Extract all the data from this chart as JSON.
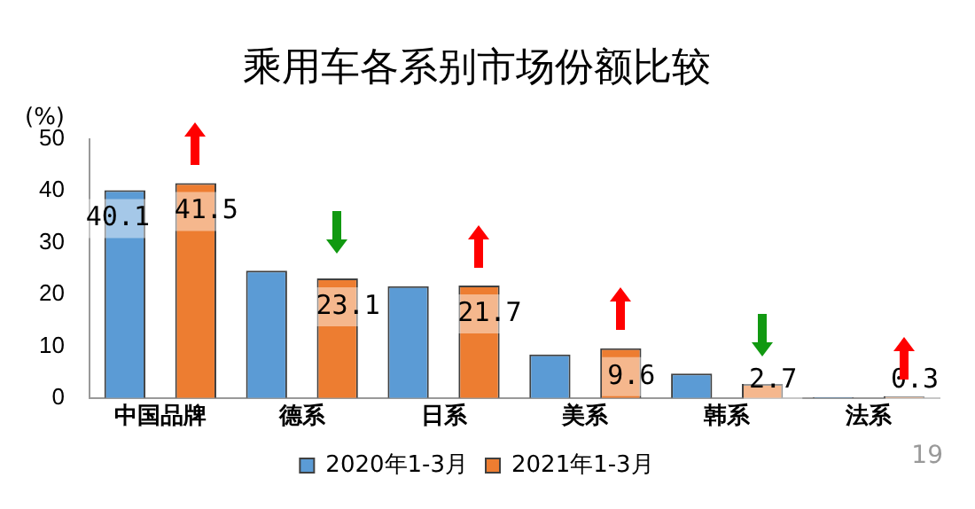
{
  "chart_data": {
    "type": "bar",
    "title": "乘用车各系别市场份额比较",
    "ylabel": "(%)",
    "categories": [
      "中国品牌",
      "德系",
      "日系",
      "美系",
      "韩系",
      "法系"
    ],
    "series": [
      {
        "name": "2020年1-3月",
        "color": "#5b9bd5",
        "values": [
          40.1,
          24.6,
          21.6,
          8.4,
          4.7,
          0.2
        ],
        "value_labels": [
          "40.1",
          null,
          null,
          null,
          null,
          null
        ]
      },
      {
        "name": "2021年1-3月",
        "color": "#ed7d31",
        "values": [
          41.5,
          23.1,
          21.7,
          9.6,
          2.7,
          0.3
        ],
        "value_labels": [
          "41.5",
          "23.1",
          "21.7",
          "9.6",
          "2.7",
          "0.3"
        ]
      }
    ],
    "ylim": [
      0,
      50
    ],
    "yticks": [
      0,
      10,
      20,
      30,
      40,
      50
    ],
    "grid": false,
    "legend": "bottom",
    "annotations": [
      "19"
    ]
  }
}
